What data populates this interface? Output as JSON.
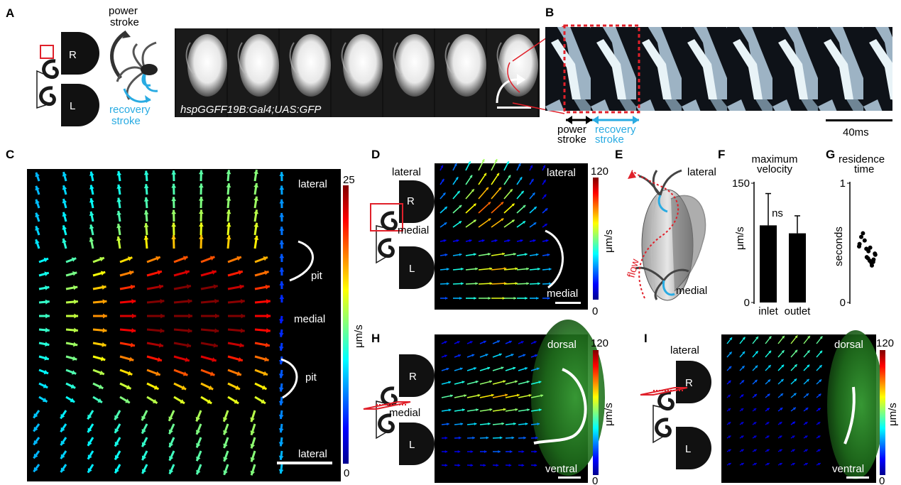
{
  "panels": {
    "A": {
      "label": "A",
      "power_stroke": [
        "power",
        "stroke"
      ],
      "recovery_stroke": [
        "recovery",
        "stroke"
      ],
      "schematic_R": "R",
      "schematic_L": "L",
      "genotype": "hspGGFF19B:Gal4;UAS:GFP",
      "frame_count": 7
    },
    "B": {
      "label": "B",
      "power_stroke": [
        "power",
        "stroke"
      ],
      "recovery_stroke": [
        "recovery",
        "stroke"
      ],
      "scale_label": "40ms"
    },
    "C": {
      "label": "C",
      "top_label": "lateral",
      "pit_label_1": "pit",
      "medial_label": "medial",
      "pit_label_2": "pit",
      "bottom_label": "lateral",
      "colorbar_max": "25",
      "colorbar_min": "0",
      "colorbar_unit": "μm/s"
    },
    "D": {
      "label": "D",
      "side_lateral": "lateral",
      "side_medial": "medial",
      "schematic_R": "R",
      "schematic_L": "L",
      "top_label": "lateral",
      "bottom_label": "medial",
      "colorbar_max": "120",
      "colorbar_min": "0",
      "colorbar_unit": "μm/s"
    },
    "E": {
      "label": "E",
      "lateral": "lateral",
      "medial": "medial",
      "flow": "flow"
    },
    "F": {
      "label": "F",
      "title": [
        "maximum",
        "velocity"
      ],
      "y_tick_top": "150",
      "y_tick_bottom": "0",
      "ylabel": "μm/s",
      "sig": "ns"
    },
    "G": {
      "label": "G",
      "title": [
        "residence",
        "time"
      ],
      "y_tick_top": "1",
      "y_tick_bottom": "0",
      "ylabel": "seconds"
    },
    "H": {
      "label": "H",
      "schematic_R": "R",
      "schematic_L": "L",
      "side_medial": "medial",
      "top_label": "dorsal",
      "bottom_label": "ventral",
      "colorbar_max": "120",
      "colorbar_min": "0",
      "colorbar_unit": "μm/s"
    },
    "I": {
      "label": "I",
      "schematic_R": "R",
      "schematic_L": "L",
      "side_lateral": "lateral",
      "top_label": "dorsal",
      "bottom_label": "ventral",
      "colorbar_max": "120",
      "colorbar_min": "0",
      "colorbar_unit": "μm/s"
    }
  },
  "chart_data": [
    {
      "type": "bar",
      "panel": "F",
      "title": "maximum velocity",
      "categories": [
        "inlet",
        "outlet"
      ],
      "values": [
        97,
        87
      ],
      "error": [
        40,
        22
      ],
      "ylabel": "μm/s",
      "ylim": [
        0,
        150
      ],
      "annotation": "ns"
    },
    {
      "type": "scatter",
      "panel": "G",
      "title": "residence time",
      "ylabel": "seconds",
      "ylim": [
        0,
        1
      ],
      "y": [
        0.47,
        0.41,
        0.34,
        0.33,
        0.35,
        0.37,
        0.45,
        0.52,
        0.58,
        0.55,
        0.49,
        0.4,
        0.36,
        0.31,
        0.46,
        0.43,
        0.38
      ]
    }
  ],
  "colors": {
    "recovery_blue": "#29abe2",
    "annotation_red": "#e0202a",
    "fluorescence_green": "#2f9a2a"
  }
}
